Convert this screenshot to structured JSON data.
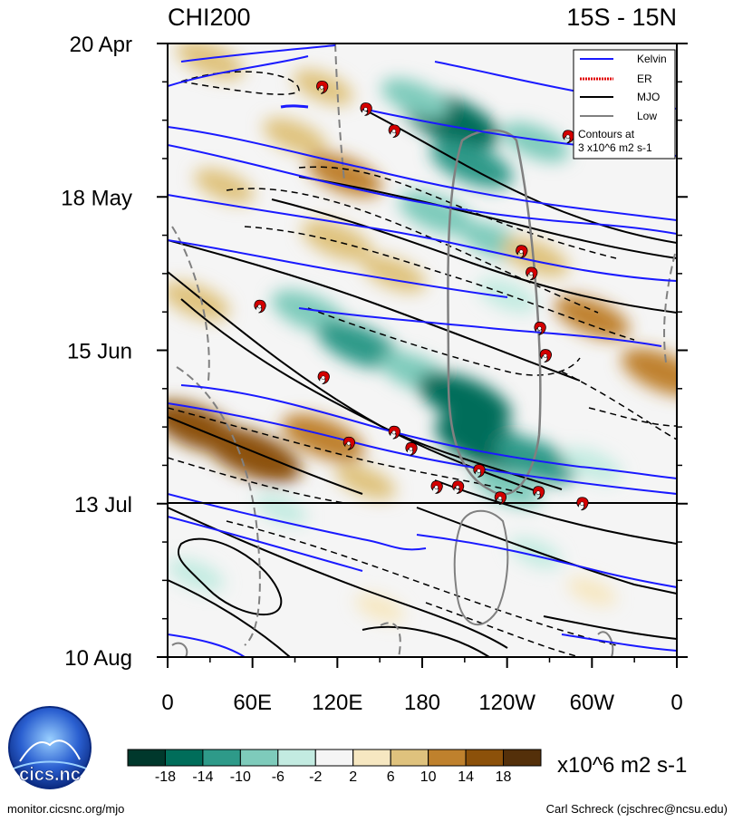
{
  "chart_data": {
    "type": "heatmap",
    "title_left": "CHI200",
    "title_right": "15S - 15N",
    "y_axis": {
      "ticks": [
        "20 Apr",
        "18 May",
        "15 Jun",
        "13 Jul",
        "10 Aug"
      ],
      "range_days": [
        0,
        112
      ],
      "tick_days": [
        0,
        28,
        56,
        84,
        112
      ],
      "forecast_boundary_day": 84
    },
    "x_axis": {
      "ticks": [
        "0",
        "60E",
        "120E",
        "180",
        "120W",
        "60W",
        "0"
      ],
      "range_deg": [
        0,
        360
      ],
      "tick_deg": [
        0,
        60,
        120,
        180,
        240,
        300,
        360
      ]
    },
    "legend": {
      "entries": [
        {
          "name": "Kelvin",
          "color": "#1a1aff",
          "style": "solid"
        },
        {
          "name": "ER",
          "color": "#e00000",
          "style": "dotted"
        },
        {
          "name": "MJO",
          "color": "#000000",
          "style": "solid"
        },
        {
          "name": "Low",
          "color": "#808080",
          "style": "solid"
        }
      ],
      "note_line1": "Contours at",
      "note_line2": "3 x10^6 m2 s-1"
    },
    "colorbar": {
      "labels": [
        "-18",
        "-14",
        "-10",
        "-6",
        "-2",
        "2",
        "6",
        "10",
        "14",
        "18"
      ],
      "colors": [
        "#00382c",
        "#006d5a",
        "#2e9a89",
        "#7ecbbb",
        "#c3ebe1",
        "#f5f5f5",
        "#f6e7c1",
        "#dfc27d",
        "#bf812d",
        "#8c510a",
        "#54300a"
      ],
      "units": "x10^6 m2 s-1"
    },
    "anomaly_blobs": [
      {
        "lon": 200,
        "day": 14,
        "value": -16
      },
      {
        "lon": 215,
        "day": 22,
        "value": -12
      },
      {
        "lon": 175,
        "day": 10,
        "value": -8
      },
      {
        "lon": 260,
        "day": 18,
        "value": -8
      },
      {
        "lon": 190,
        "day": 31,
        "value": -10
      },
      {
        "lon": 230,
        "day": 36,
        "value": -8
      },
      {
        "lon": 240,
        "day": 46,
        "value": -6
      },
      {
        "lon": 100,
        "day": 49,
        "value": -10
      },
      {
        "lon": 135,
        "day": 55,
        "value": -12
      },
      {
        "lon": 175,
        "day": 60,
        "value": -9
      },
      {
        "lon": 210,
        "day": 65,
        "value": -15
      },
      {
        "lon": 225,
        "day": 73,
        "value": -17
      },
      {
        "lon": 260,
        "day": 76,
        "value": -12
      },
      {
        "lon": 240,
        "day": 81,
        "value": -8
      },
      {
        "lon": 300,
        "day": 77,
        "value": -6
      },
      {
        "lon": 30,
        "day": 3,
        "value": 8
      },
      {
        "lon": 110,
        "day": 8,
        "value": 6
      },
      {
        "lon": 90,
        "day": 17,
        "value": 7
      },
      {
        "lon": 125,
        "day": 24,
        "value": 10
      },
      {
        "lon": 40,
        "day": 26,
        "value": 6
      },
      {
        "lon": 20,
        "day": 47,
        "value": 8
      },
      {
        "lon": 120,
        "day": 36,
        "value": 9
      },
      {
        "lon": 160,
        "day": 42,
        "value": 7
      },
      {
        "lon": 260,
        "day": 39,
        "value": 8
      },
      {
        "lon": 300,
        "day": 50,
        "value": 10
      },
      {
        "lon": 350,
        "day": 60,
        "value": 12
      },
      {
        "lon": 20,
        "day": 70,
        "value": 14
      },
      {
        "lon": 60,
        "day": 75,
        "value": 16
      },
      {
        "lon": 110,
        "day": 72,
        "value": 12
      },
      {
        "lon": 140,
        "day": 80,
        "value": 6
      },
      {
        "lon": 80,
        "day": 85,
        "value": -4
      },
      {
        "lon": 20,
        "day": 97,
        "value": -5
      },
      {
        "lon": 260,
        "day": 93,
        "value": -4
      },
      {
        "lon": 300,
        "day": 100,
        "value": 3
      },
      {
        "lon": 150,
        "day": 103,
        "value": 3
      }
    ],
    "cyclones": [
      {
        "lon": 109,
        "day": 8
      },
      {
        "lon": 140,
        "day": 12
      },
      {
        "lon": 160,
        "day": 16
      },
      {
        "lon": 283,
        "day": 17
      },
      {
        "lon": 250,
        "day": 38
      },
      {
        "lon": 257,
        "day": 42
      },
      {
        "lon": 65,
        "day": 48
      },
      {
        "lon": 263,
        "day": 52
      },
      {
        "lon": 267,
        "day": 57
      },
      {
        "lon": 110,
        "day": 61
      },
      {
        "lon": 160,
        "day": 71
      },
      {
        "lon": 128,
        "day": 73
      },
      {
        "lon": 172,
        "day": 74
      },
      {
        "lon": 220,
        "day": 78
      },
      {
        "lon": 190,
        "day": 81
      },
      {
        "lon": 205,
        "day": 81
      },
      {
        "lon": 235,
        "day": 83
      },
      {
        "lon": 262,
        "day": 82
      },
      {
        "lon": 293,
        "day": 84
      }
    ]
  },
  "footer": {
    "logo_text": "cics.nc",
    "website": "monitor.cicsnc.org/mjo",
    "credit": "Carl Schreck (cjschrec@ncsu.edu)"
  }
}
